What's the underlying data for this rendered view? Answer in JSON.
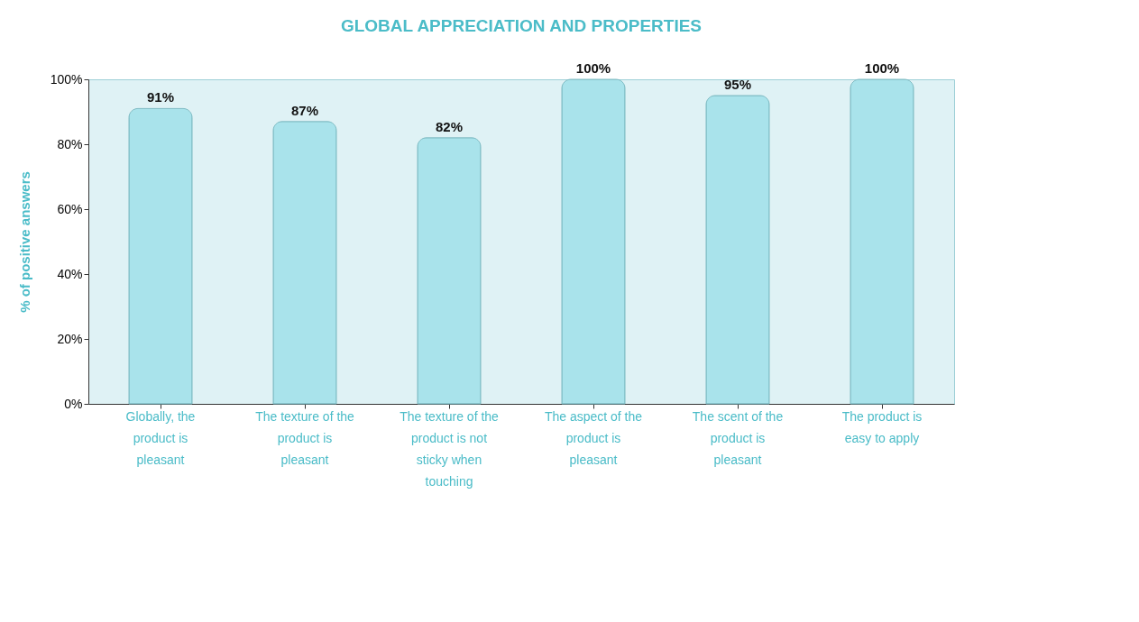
{
  "chart_data": {
    "type": "bar",
    "title": "GLOBAL APPRECIATION AND PROPERTIES",
    "ylabel": "% of positive answers",
    "categories": [
      "Globally, the product is pleasant",
      "The texture of the product is pleasant",
      "The texture of the product is not sticky when touching",
      "The aspect of the product is pleasant",
      "The scent of the product is pleasant",
      "The product is easy to apply"
    ],
    "values": [
      91,
      87,
      82,
      100,
      95,
      100
    ],
    "value_labels": [
      "91%",
      "87%",
      "82%",
      "100%",
      "95%",
      "100%"
    ],
    "color": "#a9e3eb",
    "ylim": [
      0,
      100
    ],
    "yticks": [
      {
        "value": 0,
        "label": "0%"
      },
      {
        "value": 20,
        "label": "20%"
      },
      {
        "value": 40,
        "label": "40%"
      },
      {
        "value": 60,
        "label": "60%"
      },
      {
        "value": 80,
        "label": "80%"
      },
      {
        "value": 100,
        "label": "100%"
      }
    ],
    "grid": false
  }
}
